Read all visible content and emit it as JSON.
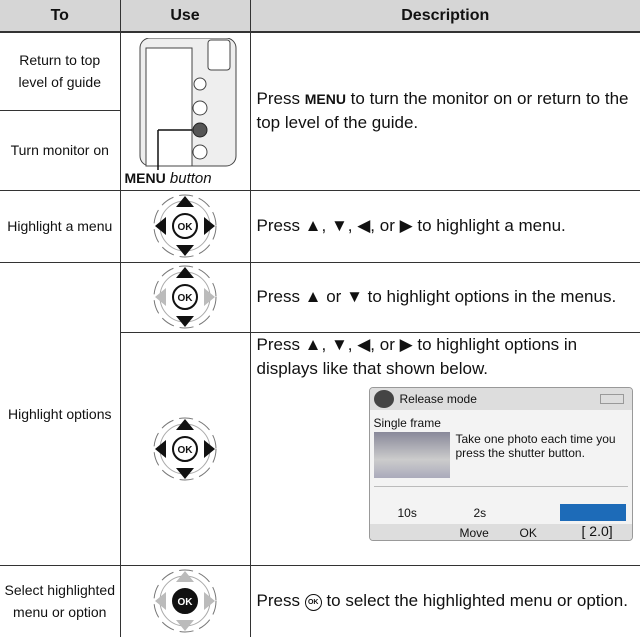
{
  "header": [
    "To",
    "Use",
    "Description"
  ],
  "rows": [
    {
      "to": [
        "Return to top level of guide",
        "Turn monitor on"
      ],
      "use": {
        "key": "MENU",
        "word": "button"
      },
      "description": {
        "pre": "Press",
        "key": "MENU",
        "post": "to turn the monitor on or return to the top level of the guide."
      }
    },
    {
      "to": [
        "Highlight a menu"
      ],
      "use": {
        "icon": "OK"
      },
      "description": {
        "text": "Press ▲, ▼, ◀, or ▶ to highlight a menu."
      }
    },
    {
      "to": [
        "Highlight options"
      ],
      "sub": [
        {
          "use": {
            "icon": "OK"
          },
          "description": {
            "text": "Press ▲ or ▼ to highlight options in the menus."
          }
        },
        {
          "use": {
            "icon": "OK"
          },
          "description": {
            "text": "Press ▲, ▼, ◀, or ▶ to highlight options in displays like that shown below."
          },
          "screen": {
            "title": "Release mode",
            "heading": "Single frame",
            "body": "Take one photo each time you press the shutter button.",
            "timer1": "10s",
            "timer2": "2s",
            "move": "Move",
            "ok": "OK",
            "count": "[ 2.0]"
          }
        }
      ]
    },
    {
      "to": [
        "Select highlighted menu or option"
      ],
      "use": {
        "icon": "OK"
      },
      "description": {
        "pre": "Press",
        "key": "OK",
        "post": "to select the highlighted menu or option."
      }
    }
  ]
}
